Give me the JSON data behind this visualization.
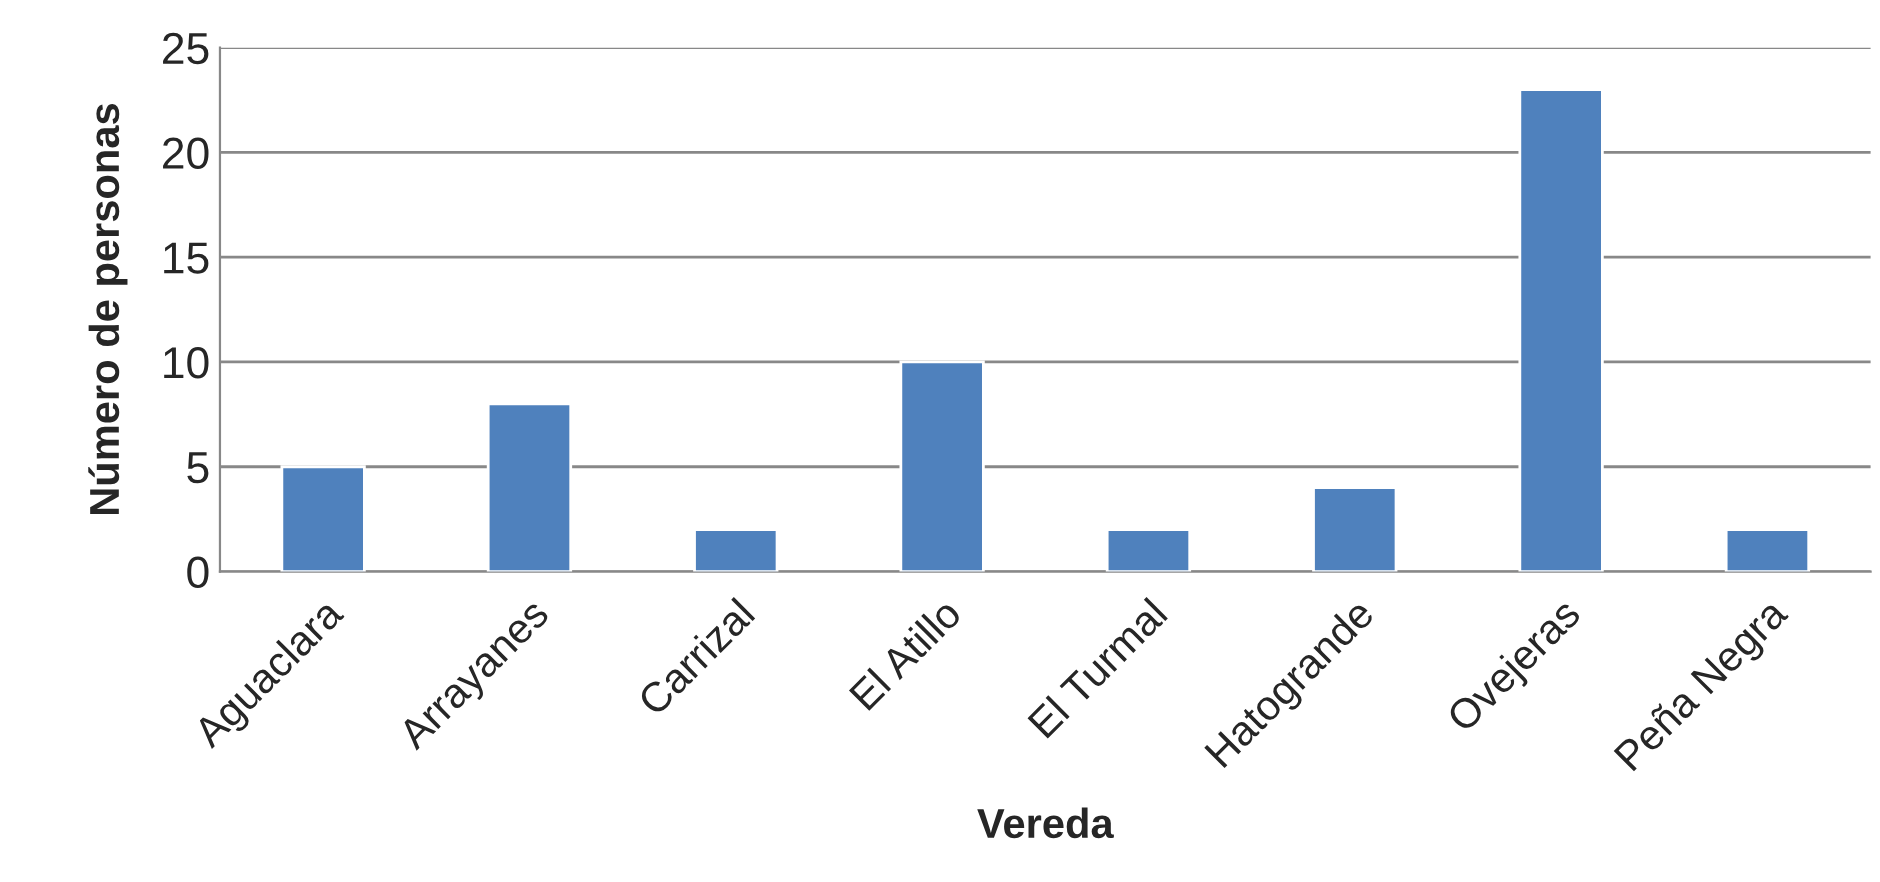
{
  "chart_data": {
    "type": "bar",
    "xlabel": "Vereda",
    "ylabel": "Número de personas",
    "categories": [
      "Aguaclara",
      "Arrayanes",
      "Carrizal",
      "El Atillo",
      "El Turmal",
      "Hatogrande",
      "Ovejeras",
      "Peña Negra"
    ],
    "values": [
      5,
      8,
      2,
      10,
      2,
      4,
      23,
      2
    ],
    "color": "#4f81bd",
    "ylim": [
      0,
      25
    ],
    "yticks": [
      0,
      5,
      10,
      15,
      20,
      25
    ],
    "grid": "y",
    "legend": false
  }
}
